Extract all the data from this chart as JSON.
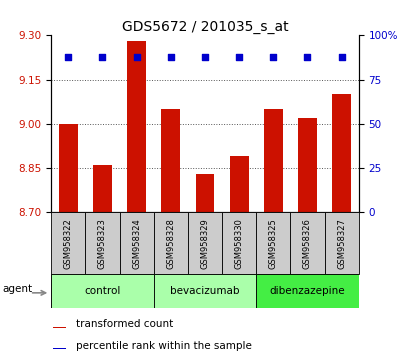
{
  "title": "GDS5672 / 201035_s_at",
  "samples": [
    "GSM958322",
    "GSM958323",
    "GSM958324",
    "GSM958328",
    "GSM958329",
    "GSM958330",
    "GSM958325",
    "GSM958326",
    "GSM958327"
  ],
  "bar_values": [
    9.0,
    8.86,
    9.28,
    9.05,
    8.83,
    8.89,
    9.05,
    9.02,
    9.1
  ],
  "percentile_values": [
    88,
    88,
    88,
    88,
    88,
    88,
    88,
    88,
    88
  ],
  "bar_color": "#cc1100",
  "dot_color": "#0000cc",
  "ylim_left": [
    8.7,
    9.3
  ],
  "ylim_right": [
    0,
    100
  ],
  "yticks_left": [
    8.7,
    8.85,
    9.0,
    9.15,
    9.3
  ],
  "yticks_right": [
    0,
    25,
    50,
    75,
    100
  ],
  "groups": [
    {
      "label": "control",
      "indices": [
        0,
        1,
        2
      ],
      "color": "#aaffaa"
    },
    {
      "label": "bevacizumab",
      "indices": [
        3,
        4,
        5
      ],
      "color": "#aaffaa"
    },
    {
      "label": "dibenzazepine",
      "indices": [
        6,
        7,
        8
      ],
      "color": "#44ee44"
    }
  ],
  "agent_label": "agent",
  "legend_bar": "transformed count",
  "legend_dot": "percentile rank within the sample",
  "bar_width": 0.55,
  "grid_color": "#555555",
  "background_label": "#cccccc",
  "title_fontsize": 10
}
